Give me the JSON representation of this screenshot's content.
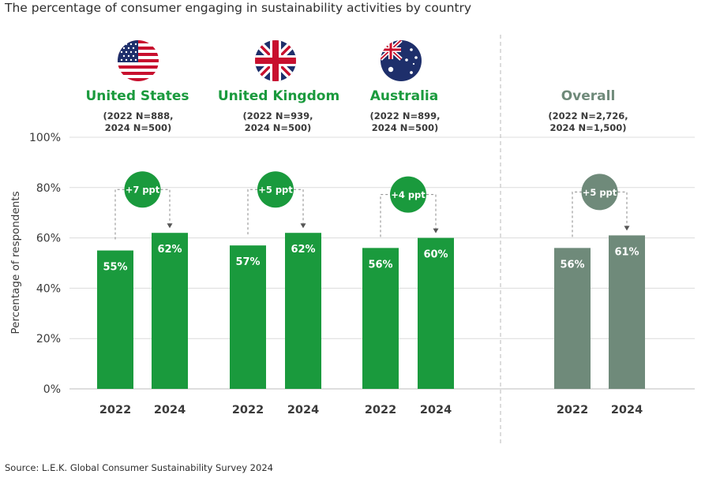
{
  "title": "The percentage of consumer engaging in sustainability activities by country",
  "source": "Source: L.E.K. Global Consumer Sustainability Survey 2024",
  "colors": {
    "country": "#1a9a3d",
    "overall": "#6f8a7a",
    "grid": "#dcdcdc",
    "text": "#3a3a3a"
  },
  "groups": [
    {
      "name": "United States",
      "n_line1": "(2022 N=888,",
      "n_line2": "2024 N=500)",
      "flag": "us-flag-icon"
    },
    {
      "name": "United Kingdom",
      "n_line1": "(2022 N=939,",
      "n_line2": "2024 N=500)",
      "flag": "uk-flag-icon"
    },
    {
      "name": "Australia",
      "n_line1": "(2022 N=899,",
      "n_line2": "2024 N=500)",
      "flag": "australia-flag-icon"
    },
    {
      "name": "Overall",
      "n_line1": "(2022 N=2,726,",
      "n_line2": "2024 N=1,500)",
      "flag": ""
    }
  ],
  "chart_data": {
    "type": "bar",
    "title": "The percentage of consumer engaging in sustainability activities by country",
    "xlabel": "",
    "ylabel": "Percentage of respondents",
    "ylim": [
      0,
      100
    ],
    "yticks": [
      0,
      20,
      40,
      60,
      80,
      100
    ],
    "ytick_labels": [
      "0%",
      "20%",
      "40%",
      "60%",
      "80%",
      "100%"
    ],
    "categories": [
      "United States",
      "United Kingdom",
      "Australia",
      "Overall"
    ],
    "series": [
      {
        "name": "2022",
        "values": [
          55,
          57,
          56,
          56
        ],
        "labels": [
          "55%",
          "57%",
          "56%",
          "56%"
        ]
      },
      {
        "name": "2024",
        "values": [
          62,
          62,
          60,
          61
        ],
        "labels": [
          "62%",
          "62%",
          "60%",
          "61%"
        ]
      }
    ],
    "changes": [
      "+7 ppt",
      "+5 ppt",
      "+4 ppt",
      "+5 ppt"
    ],
    "grid": true
  }
}
